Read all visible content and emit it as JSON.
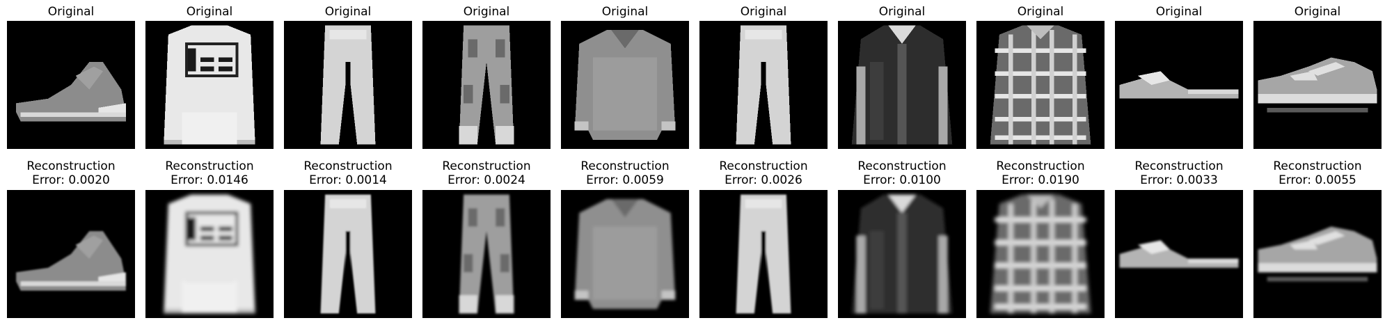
{
  "figure": {
    "columns": [
      {
        "original_title": "Original",
        "reconstruction_title": "Reconstruction",
        "error_text": "Error: 0.0020",
        "error": 0.002,
        "item": "ankle-boot",
        "reconstruction_blur": 0.55
      },
      {
        "original_title": "Original",
        "reconstruction_title": "Reconstruction",
        "error_text": "Error: 0.0146",
        "error": 0.0146,
        "item": "pullover-with-logo",
        "reconstruction_blur": 1.1
      },
      {
        "original_title": "Original",
        "reconstruction_title": "Reconstruction",
        "error_text": "Error: 0.0014",
        "error": 0.0014,
        "item": "trouser",
        "reconstruction_blur": 0.5
      },
      {
        "original_title": "Original",
        "reconstruction_title": "Reconstruction",
        "error_text": "Error: 0.0024",
        "error": 0.0024,
        "item": "trouser-patterned",
        "reconstruction_blur": 0.7
      },
      {
        "original_title": "Original",
        "reconstruction_title": "Reconstruction",
        "error_text": "Error: 0.0059",
        "error": 0.0059,
        "item": "shirt-textured",
        "reconstruction_blur": 0.9
      },
      {
        "original_title": "Original",
        "reconstruction_title": "Reconstruction",
        "error_text": "Error: 0.0026",
        "error": 0.0026,
        "item": "trouser",
        "reconstruction_blur": 0.6
      },
      {
        "original_title": "Original",
        "reconstruction_title": "Reconstruction",
        "error_text": "Error: 0.0100",
        "error": 0.01,
        "item": "coat-dark",
        "reconstruction_blur": 1.0
      },
      {
        "original_title": "Original",
        "reconstruction_title": "Reconstruction",
        "error_text": "Error: 0.0190",
        "error": 0.019,
        "item": "shirt-plaid",
        "reconstruction_blur": 1.3
      },
      {
        "original_title": "Original",
        "reconstruction_title": "Reconstruction",
        "error_text": "Error: 0.0033",
        "error": 0.0033,
        "item": "sandal",
        "reconstruction_blur": 0.7
      },
      {
        "original_title": "Original",
        "reconstruction_title": "Reconstruction",
        "error_text": "Error: 0.0055",
        "error": 0.0055,
        "item": "sneaker",
        "reconstruction_blur": 0.8
      }
    ]
  }
}
